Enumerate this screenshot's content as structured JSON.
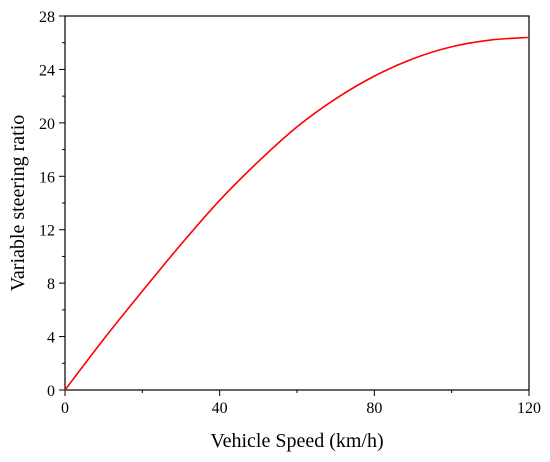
{
  "chart_data": {
    "type": "line",
    "title": "",
    "xlabel": "Vehicle Speed (km/h)",
    "ylabel": "Variable steering ratio",
    "xlim": [
      0,
      120
    ],
    "ylim": [
      0,
      28
    ],
    "xticks": [
      0,
      40,
      80,
      120
    ],
    "yticks": [
      0,
      4,
      8,
      12,
      16,
      20,
      24,
      28
    ],
    "x_minor_step": 20,
    "y_minor_step": 2,
    "grid": false,
    "legend": "none",
    "series": [
      {
        "color": "#ff0000",
        "x": [
          0,
          10,
          20,
          30,
          40,
          50,
          60,
          70,
          80,
          90,
          100,
          110,
          120
        ],
        "y": [
          0,
          3.8,
          7.4,
          10.9,
          14.2,
          17.1,
          19.7,
          21.8,
          23.5,
          24.8,
          25.7,
          26.2,
          26.4
        ]
      }
    ]
  }
}
